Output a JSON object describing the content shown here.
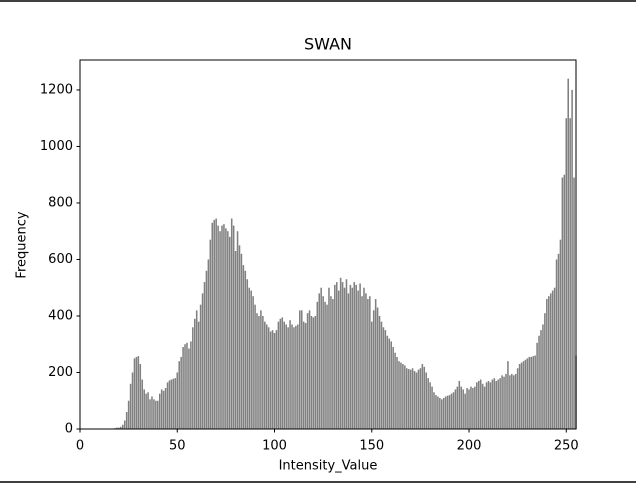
{
  "chart_data": {
    "type": "bar",
    "title": "SWAN",
    "xlabel": "Intensity_Value",
    "ylabel": "Frequency",
    "color": "#808080",
    "x": [
      0,
      1,
      2,
      3,
      4,
      5,
      6,
      7,
      8,
      9,
      10,
      11,
      12,
      13,
      14,
      15,
      16,
      17,
      18,
      19,
      20,
      21,
      22,
      23,
      24,
      25,
      26,
      27,
      28,
      29,
      30,
      31,
      32,
      33,
      34,
      35,
      36,
      37,
      38,
      39,
      40,
      41,
      42,
      43,
      44,
      45,
      46,
      47,
      48,
      49,
      50,
      51,
      52,
      53,
      54,
      55,
      56,
      57,
      58,
      59,
      60,
      61,
      62,
      63,
      64,
      65,
      66,
      67,
      68,
      69,
      70,
      71,
      72,
      73,
      74,
      75,
      76,
      77,
      78,
      79,
      80,
      81,
      82,
      83,
      84,
      85,
      86,
      87,
      88,
      89,
      90,
      91,
      92,
      93,
      94,
      95,
      96,
      97,
      98,
      99,
      100,
      101,
      102,
      103,
      104,
      105,
      106,
      107,
      108,
      109,
      110,
      111,
      112,
      113,
      114,
      115,
      116,
      117,
      118,
      119,
      120,
      121,
      122,
      123,
      124,
      125,
      126,
      127,
      128,
      129,
      130,
      131,
      132,
      133,
      134,
      135,
      136,
      137,
      138,
      139,
      140,
      141,
      142,
      143,
      144,
      145,
      146,
      147,
      148,
      149,
      150,
      151,
      152,
      153,
      154,
      155,
      156,
      157,
      158,
      159,
      160,
      161,
      162,
      163,
      164,
      165,
      166,
      167,
      168,
      169,
      170,
      171,
      172,
      173,
      174,
      175,
      176,
      177,
      178,
      179,
      180,
      181,
      182,
      183,
      184,
      185,
      186,
      187,
      188,
      189,
      190,
      191,
      192,
      193,
      194,
      195,
      196,
      197,
      198,
      199,
      200,
      201,
      202,
      203,
      204,
      205,
      206,
      207,
      208,
      209,
      210,
      211,
      212,
      213,
      214,
      215,
      216,
      217,
      218,
      219,
      220,
      221,
      222,
      223,
      224,
      225,
      226,
      227,
      228,
      229,
      230,
      231,
      232,
      233,
      234,
      235,
      236,
      237,
      238,
      239,
      240,
      241,
      242,
      243,
      244,
      245,
      246,
      247,
      248,
      249,
      250,
      251,
      252,
      253,
      254,
      255
    ],
    "values": [
      0,
      0,
      0,
      0,
      0,
      0,
      0,
      0,
      0,
      0,
      0,
      0,
      0,
      0,
      0,
      0,
      0,
      0,
      3,
      5,
      5,
      8,
      15,
      30,
      60,
      100,
      160,
      200,
      250,
      255,
      258,
      230,
      175,
      140,
      125,
      130,
      105,
      115,
      105,
      100,
      100,
      125,
      140,
      135,
      145,
      165,
      172,
      175,
      178,
      180,
      200,
      240,
      255,
      290,
      300,
      305,
      285,
      310,
      360,
      390,
      420,
      380,
      440,
      480,
      520,
      560,
      600,
      670,
      730,
      740,
      745,
      720,
      700,
      720,
      725,
      710,
      700,
      680,
      745,
      720,
      630,
      700,
      650,
      620,
      580,
      560,
      530,
      500,
      490,
      470,
      440,
      410,
      400,
      420,
      400,
      380,
      370,
      360,
      345,
      350,
      340,
      350,
      380,
      390,
      395,
      380,
      370,
      360,
      385,
      370,
      360,
      365,
      370,
      420,
      420,
      380,
      375,
      410,
      420,
      400,
      395,
      400,
      450,
      480,
      500,
      470,
      450,
      440,
      500,
      470,
      460,
      510,
      520,
      490,
      535,
      520,
      500,
      530,
      480,
      510,
      500,
      520,
      510,
      490,
      515,
      470,
      500,
      480,
      460,
      470,
      380,
      420,
      460,
      430,
      400,
      380,
      360,
      350,
      330,
      320,
      310,
      290,
      270,
      255,
      240,
      235,
      230,
      225,
      215,
      212,
      210,
      215,
      205,
      200,
      210,
      215,
      230,
      220,
      200,
      180,
      165,
      150,
      130,
      120,
      115,
      110,
      105,
      110,
      115,
      118,
      120,
      125,
      130,
      140,
      150,
      170,
      150,
      140,
      125,
      145,
      140,
      150,
      145,
      150,
      165,
      170,
      175,
      160,
      150,
      165,
      170,
      165,
      175,
      180,
      170,
      175,
      180,
      190,
      185,
      195,
      240,
      190,
      195,
      190,
      195,
      215,
      230,
      235,
      240,
      245,
      250,
      255,
      255,
      258,
      260,
      305,
      330,
      350,
      370,
      410,
      460,
      470,
      480,
      490,
      500,
      600,
      620,
      670,
      890,
      900,
      1100,
      1240,
      1100,
      1200,
      890,
      260
    ],
    "xlim": [
      0,
      255
    ],
    "xticks": [
      0,
      50,
      100,
      150,
      200,
      250
    ],
    "ylim": [
      0,
      1306
    ],
    "yticks": [
      0,
      200,
      400,
      600,
      800,
      1000,
      1200
    ]
  }
}
